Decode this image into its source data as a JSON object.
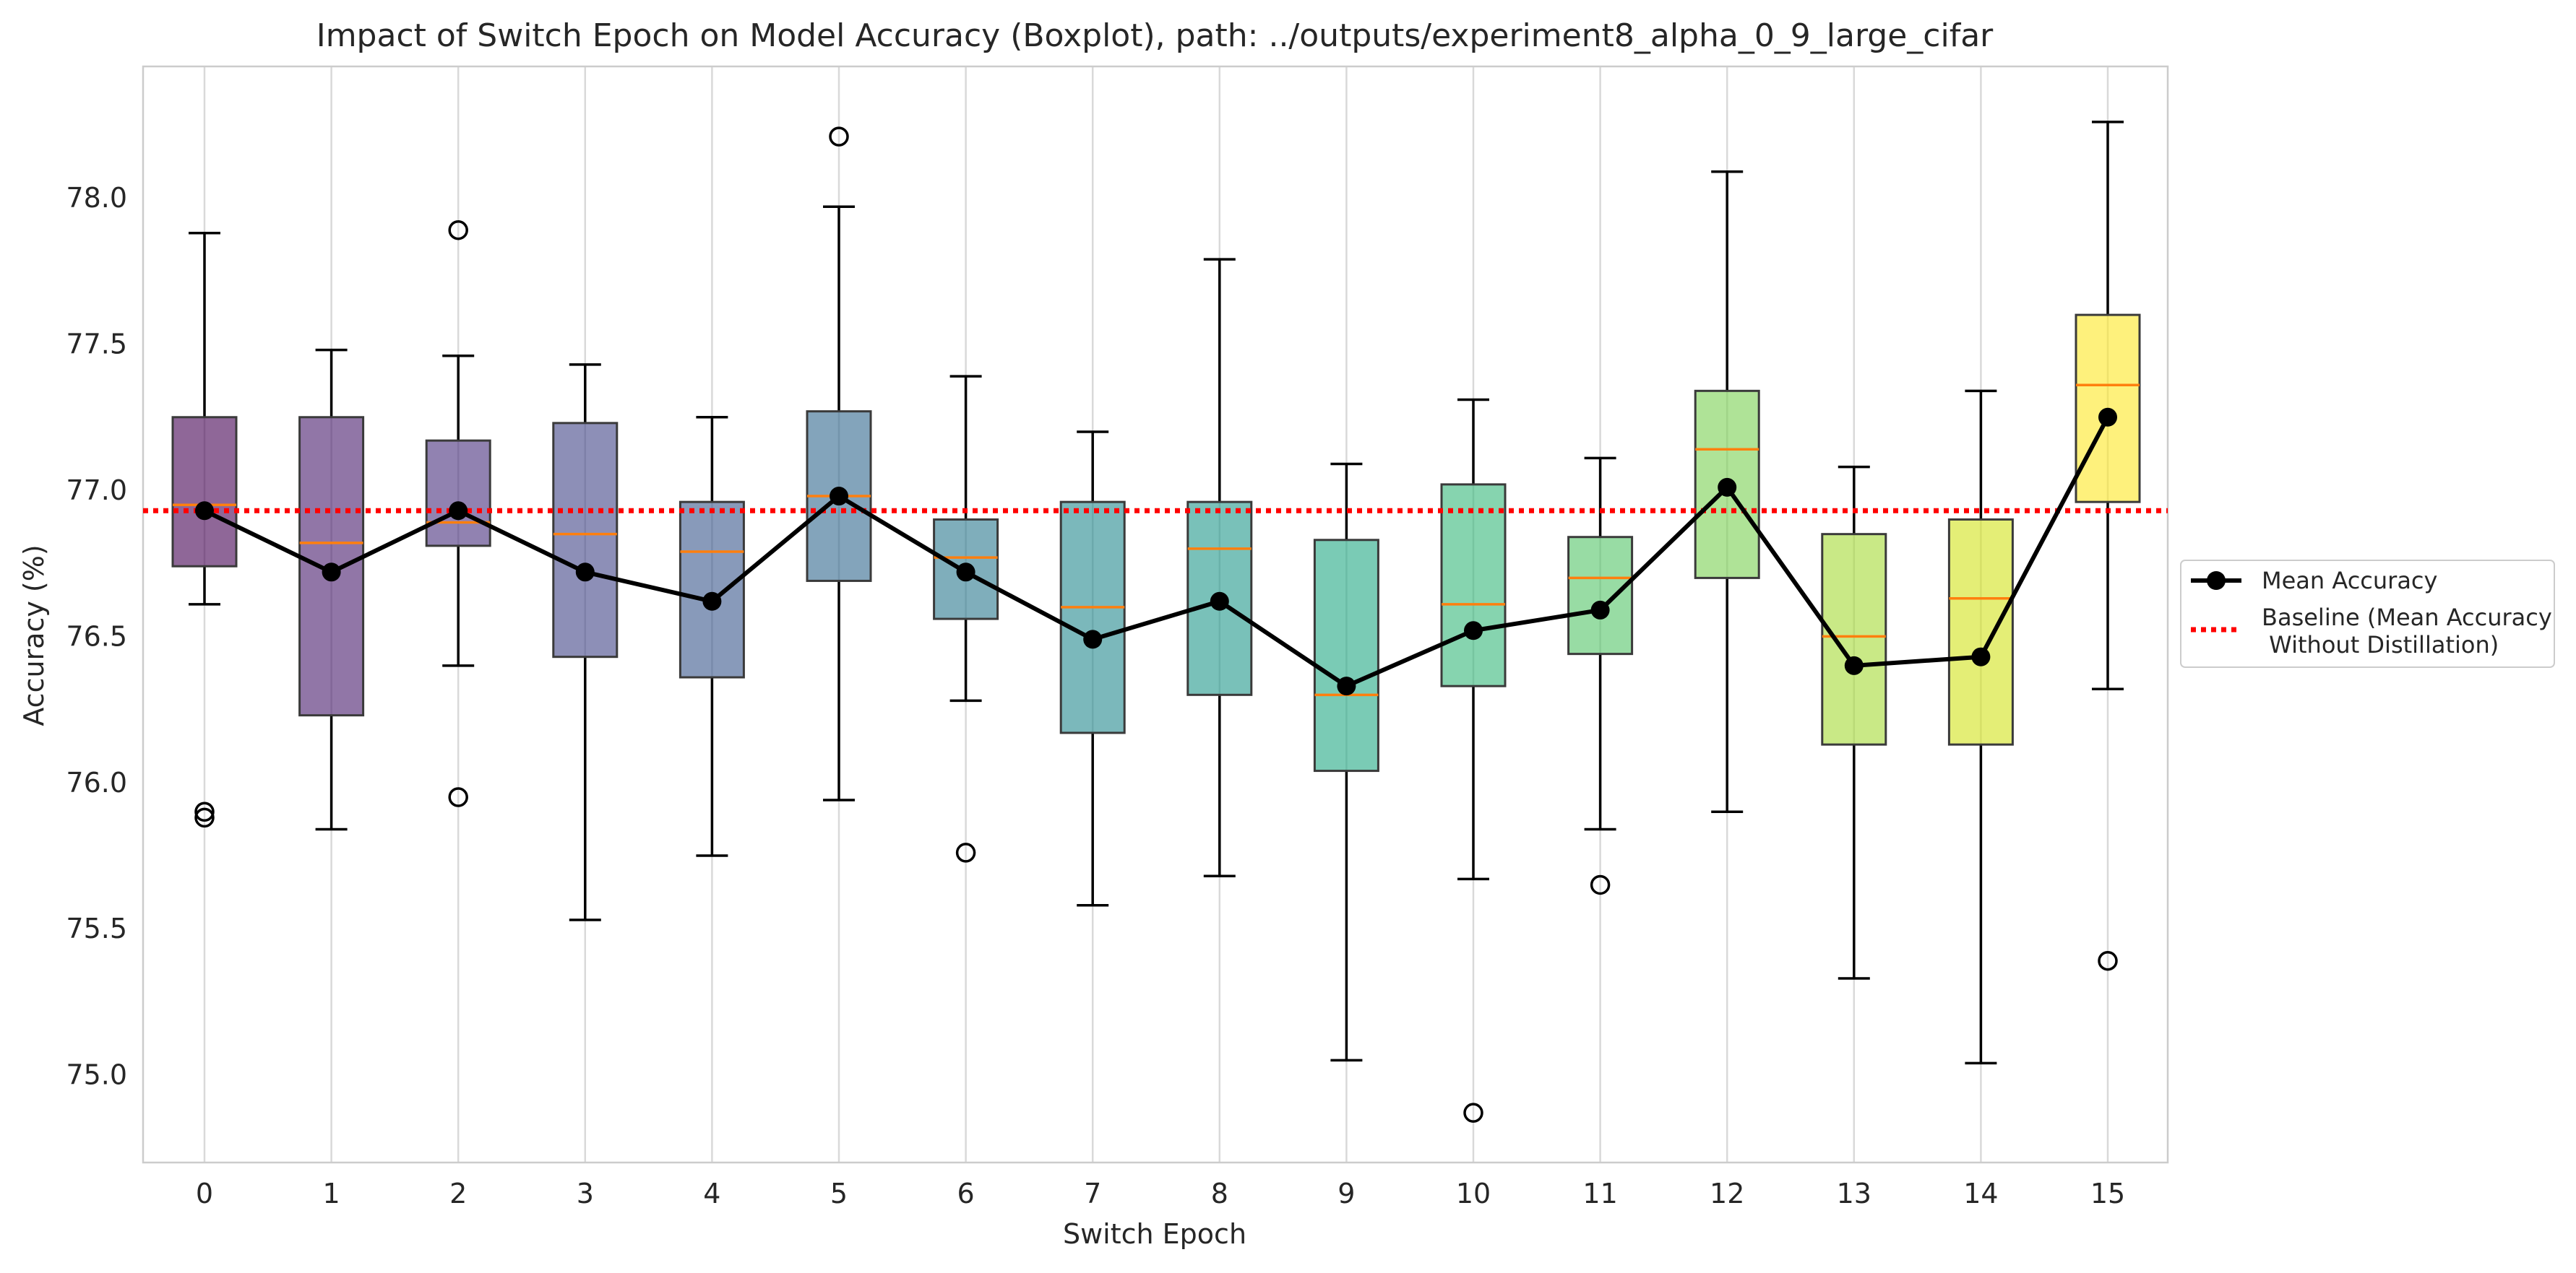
{
  "chart_data": {
    "type": "boxplot",
    "title": "Impact of Switch Epoch on Model Accuracy (Boxplot), path: ../outputs/experiment8_alpha_0_9_large_cifar",
    "xlabel": "Switch Epoch",
    "ylabel": "Accuracy (%)",
    "ylim": [
      74.7,
      78.45
    ],
    "yticks": [
      "75.0",
      "75.5",
      "76.0",
      "76.5",
      "77.0",
      "77.5",
      "78.0"
    ],
    "categories": [
      "0",
      "1",
      "2",
      "3",
      "4",
      "5",
      "6",
      "7",
      "8",
      "9",
      "10",
      "11",
      "12",
      "13",
      "14",
      "15"
    ],
    "box_colors": [
      "#440154",
      "#481a6c",
      "#472f7d",
      "#414487",
      "#39568c",
      "#31688e",
      "#2a788e",
      "#23888e",
      "#1f988b",
      "#22a884",
      "#35b779",
      "#54c568",
      "#7ad151",
      "#a5db36",
      "#d2e21b",
      "#fde725"
    ],
    "boxes": [
      {
        "whisker_low": 76.61,
        "q1": 76.74,
        "median": 76.95,
        "q3": 77.25,
        "whisker_high": 77.88,
        "outliers": [
          75.9,
          75.88
        ]
      },
      {
        "whisker_low": 75.84,
        "q1": 76.23,
        "median": 76.82,
        "q3": 77.25,
        "whisker_high": 77.48,
        "outliers": []
      },
      {
        "whisker_low": 76.4,
        "q1": 76.81,
        "median": 76.89,
        "q3": 77.17,
        "whisker_high": 77.46,
        "outliers": [
          77.89,
          75.95
        ]
      },
      {
        "whisker_low": 75.53,
        "q1": 76.43,
        "median": 76.85,
        "q3": 77.23,
        "whisker_high": 77.43,
        "outliers": []
      },
      {
        "whisker_low": 75.75,
        "q1": 76.36,
        "median": 76.79,
        "q3": 76.96,
        "whisker_high": 77.25,
        "outliers": []
      },
      {
        "whisker_low": 75.94,
        "q1": 76.69,
        "median": 76.98,
        "q3": 77.27,
        "whisker_high": 77.97,
        "outliers": [
          78.21
        ]
      },
      {
        "whisker_low": 76.28,
        "q1": 76.56,
        "median": 76.77,
        "q3": 76.9,
        "whisker_high": 77.39,
        "outliers": [
          75.76
        ]
      },
      {
        "whisker_low": 75.58,
        "q1": 76.17,
        "median": 76.6,
        "q3": 76.96,
        "whisker_high": 77.2,
        "outliers": []
      },
      {
        "whisker_low": 75.68,
        "q1": 76.3,
        "median": 76.8,
        "q3": 76.96,
        "whisker_high": 77.79,
        "outliers": []
      },
      {
        "whisker_low": 75.05,
        "q1": 76.04,
        "median": 76.3,
        "q3": 76.83,
        "whisker_high": 77.09,
        "outliers": []
      },
      {
        "whisker_low": 75.67,
        "q1": 76.33,
        "median": 76.61,
        "q3": 77.02,
        "whisker_high": 77.31,
        "outliers": [
          74.87
        ]
      },
      {
        "whisker_low": 75.84,
        "q1": 76.44,
        "median": 76.7,
        "q3": 76.84,
        "whisker_high": 77.11,
        "outliers": [
          75.65
        ]
      },
      {
        "whisker_low": 75.9,
        "q1": 76.7,
        "median": 77.14,
        "q3": 77.34,
        "whisker_high": 78.09,
        "outliers": []
      },
      {
        "whisker_low": 75.33,
        "q1": 76.13,
        "median": 76.5,
        "q3": 76.85,
        "whisker_high": 77.08,
        "outliers": []
      },
      {
        "whisker_low": 75.04,
        "q1": 76.13,
        "median": 76.63,
        "q3": 76.9,
        "whisker_high": 77.34,
        "outliers": []
      },
      {
        "whisker_low": 76.32,
        "q1": 76.96,
        "median": 77.36,
        "q3": 77.6,
        "whisker_high": 78.26,
        "outliers": [
          75.39
        ]
      }
    ],
    "series": [
      {
        "name": "Mean Accuracy",
        "type": "line",
        "color": "#000000",
        "values": [
          76.93,
          76.72,
          76.93,
          76.72,
          76.62,
          76.98,
          76.72,
          76.49,
          76.62,
          76.33,
          76.52,
          76.59,
          77.01,
          76.4,
          76.43,
          77.25
        ]
      },
      {
        "name": "Baseline (Mean Accuracy\n Without Distillation)",
        "type": "hline",
        "color": "#ff0000",
        "value": 76.93
      }
    ],
    "legend": {
      "placement": "center-right, outside plot",
      "entries": [
        "Mean Accuracy",
        "Baseline (Mean Accuracy",
        " Without Distillation)"
      ]
    },
    "grid": "vertical lines at categories",
    "median_color": "#ff7f0e"
  }
}
